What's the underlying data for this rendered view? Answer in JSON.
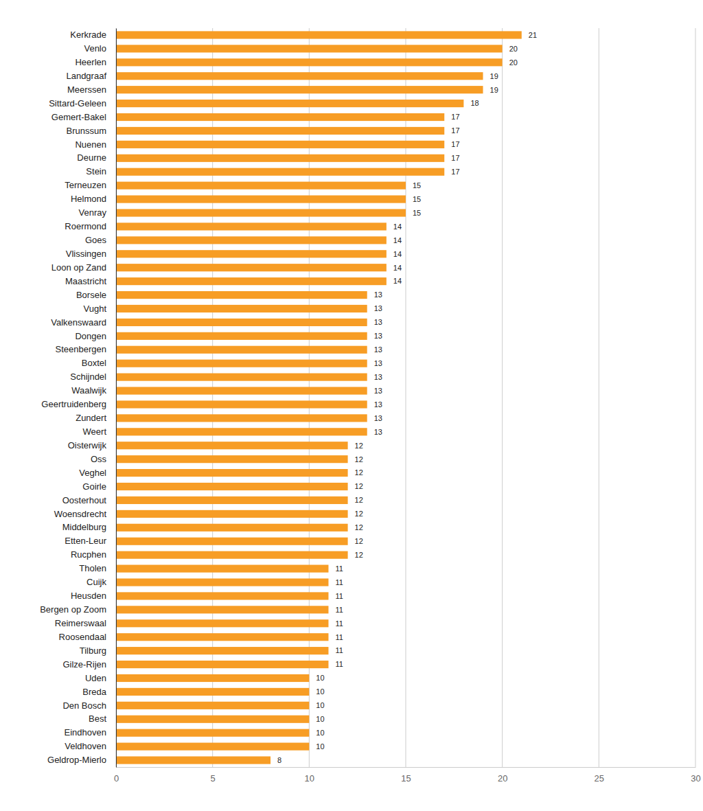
{
  "chart_data": {
    "type": "bar",
    "orientation": "horizontal",
    "categories": [
      "Kerkrade",
      "Venlo",
      "Heerlen",
      "Landgraaf",
      "Meerssen",
      "Sittard-Geleen",
      "Gemert-Bakel",
      "Brunssum",
      "Nuenen",
      "Deurne",
      "Stein",
      "Terneuzen",
      "Helmond",
      "Venray",
      "Roermond",
      "Goes",
      "Vlissingen",
      "Loon op Zand",
      "Maastricht",
      "Borsele",
      "Vught",
      "Valkenswaard",
      "Dongen",
      "Steenbergen",
      "Boxtel",
      "Schijndel",
      "Waalwijk",
      "Geertruidenberg",
      "Zundert",
      "Weert",
      "Oisterwijk",
      "Oss",
      "Veghel",
      "Goirle",
      "Oosterhout",
      "Woensdrecht",
      "Middelburg",
      "Etten-Leur",
      "Rucphen",
      "Tholen",
      "Cuijk",
      "Heusden",
      "Bergen op Zoom",
      "Reimerswaal",
      "Roosendaal",
      "Tilburg",
      "Gilze-Rijen",
      "Uden",
      "Breda",
      "Den Bosch",
      "Best",
      "Eindhoven",
      "Veldhoven",
      "Geldrop-Mierlo"
    ],
    "values": [
      21,
      20,
      20,
      19,
      19,
      18,
      17,
      17,
      17,
      17,
      17,
      15,
      15,
      15,
      14,
      14,
      14,
      14,
      14,
      13,
      13,
      13,
      13,
      13,
      13,
      13,
      13,
      13,
      13,
      13,
      12,
      12,
      12,
      12,
      12,
      12,
      12,
      12,
      12,
      11,
      11,
      11,
      11,
      11,
      11,
      11,
      11,
      10,
      10,
      10,
      10,
      10,
      10,
      8
    ],
    "color": "#f79d25",
    "xlim": [
      0,
      30
    ],
    "xticks": [
      0,
      5,
      10,
      15,
      20,
      25,
      30
    ],
    "grid": true,
    "data_labels": true
  }
}
